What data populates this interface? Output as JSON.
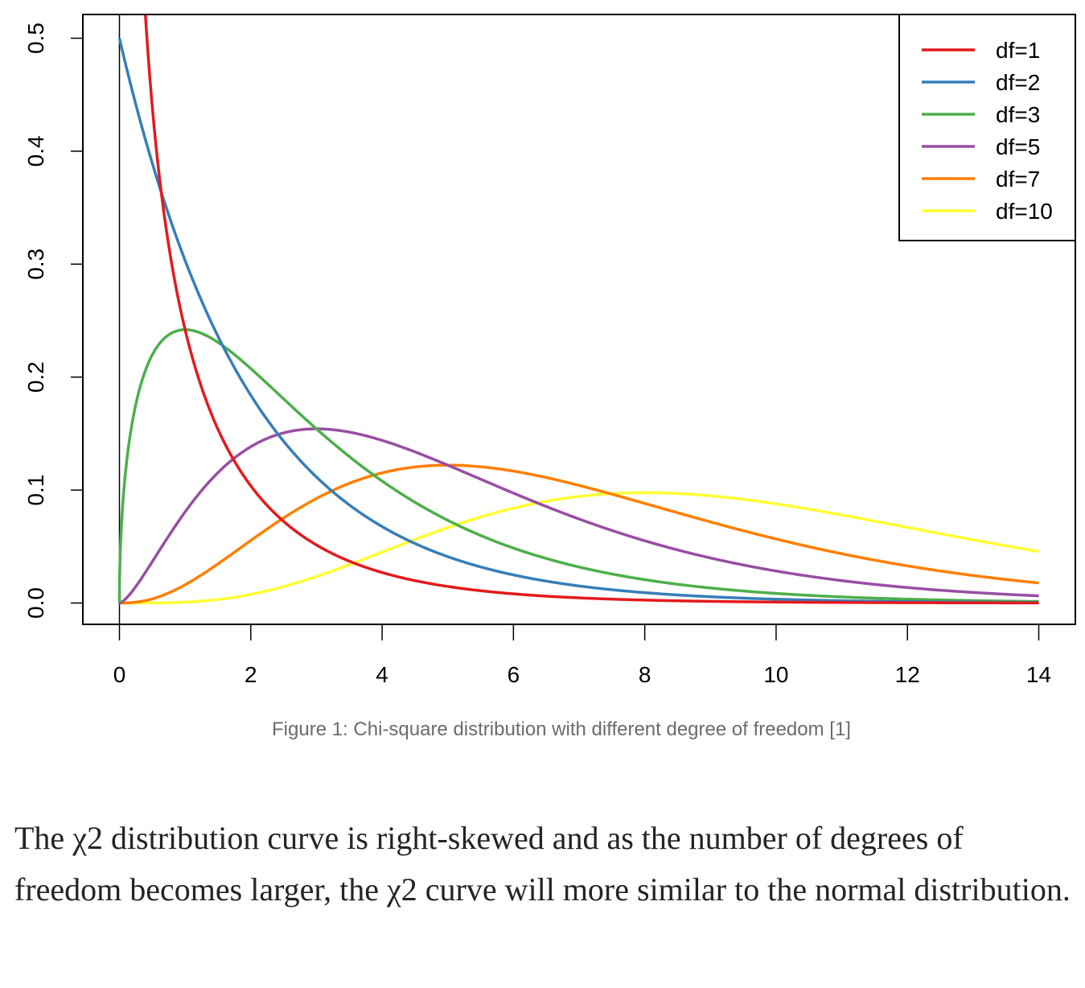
{
  "chart_data": {
    "type": "line",
    "title": "",
    "xlabel": "",
    "ylabel": "",
    "xlim": [
      0,
      14
    ],
    "ylim": [
      0,
      0.5
    ],
    "x_ticks": [
      0,
      2,
      4,
      6,
      8,
      10,
      12,
      14
    ],
    "y_ticks": [
      0.0,
      0.1,
      0.2,
      0.3,
      0.4,
      0.5
    ],
    "x_tick_labels": [
      "0",
      "2",
      "4",
      "6",
      "8",
      "10",
      "12",
      "14"
    ],
    "y_tick_labels": [
      "0.0",
      "0.1",
      "0.2",
      "0.3",
      "0.4",
      "0.5"
    ],
    "grid": false,
    "legend_position": "top-right",
    "series": [
      {
        "name": "df=1",
        "df": 1,
        "color": "#e41a1c",
        "x": [
          0.4,
          0.5,
          0.7,
          1,
          1.5,
          2,
          3,
          4,
          5,
          6,
          8,
          10,
          12,
          14
        ],
        "values": [
          0.516,
          0.439,
          0.337,
          0.242,
          0.14,
          0.104,
          0.051,
          0.027,
          0.015,
          0.008,
          0.003,
          0.001,
          0.0005,
          0.0002
        ]
      },
      {
        "name": "df=2",
        "df": 2,
        "color": "#377eb8",
        "x": [
          0,
          1,
          2,
          3,
          4,
          5,
          6,
          8,
          10,
          12,
          14
        ],
        "values": [
          0.5,
          0.303,
          0.184,
          0.112,
          0.068,
          0.041,
          0.025,
          0.009,
          0.003,
          0.001,
          0.0005
        ]
      },
      {
        "name": "df=3",
        "df": 3,
        "color": "#4daf4a",
        "x": [
          0,
          0.1,
          0.3,
          0.5,
          1,
          1.5,
          2,
          3,
          4,
          5,
          6,
          8,
          10,
          12,
          14
        ],
        "values": [
          0,
          0.12,
          0.188,
          0.22,
          0.242,
          0.231,
          0.208,
          0.154,
          0.108,
          0.073,
          0.048,
          0.02,
          0.008,
          0.003,
          0.001
        ]
      },
      {
        "name": "df=5",
        "df": 5,
        "color": "#984ea3",
        "x": [
          0,
          0.5,
          1,
          2,
          3,
          4,
          5,
          6,
          7,
          8,
          10,
          12,
          14
        ],
        "values": [
          0,
          0.044,
          0.081,
          0.138,
          0.154,
          0.144,
          0.122,
          0.097,
          0.074,
          0.055,
          0.028,
          0.013,
          0.006
        ]
      },
      {
        "name": "df=7",
        "df": 7,
        "color": "#ff7f00",
        "x": [
          0,
          1,
          2,
          3,
          4,
          5,
          6,
          7,
          8,
          9,
          10,
          12,
          14
        ],
        "values": [
          0,
          0.016,
          0.057,
          0.097,
          0.119,
          0.122,
          0.113,
          0.097,
          0.08,
          0.063,
          0.048,
          0.027,
          0.016
        ]
      },
      {
        "name": "df=10",
        "df": 10,
        "color": "#ffff33",
        "x": [
          0,
          1,
          2,
          3,
          4,
          5,
          6,
          7,
          8,
          9,
          10,
          11,
          12,
          13,
          14
        ],
        "values": [
          0,
          0.001,
          0.008,
          0.025,
          0.045,
          0.067,
          0.084,
          0.094,
          0.098,
          0.096,
          0.088,
          0.077,
          0.066,
          0.055,
          0.045
        ]
      }
    ]
  },
  "caption": "Figure 1: Chi-square distribution with different degree of freedom [1]",
  "body_text": "The χ2 distribution curve is right-skewed and as the number of degrees of freedom becomes larger, the χ2 curve will more similar to the normal distribution."
}
